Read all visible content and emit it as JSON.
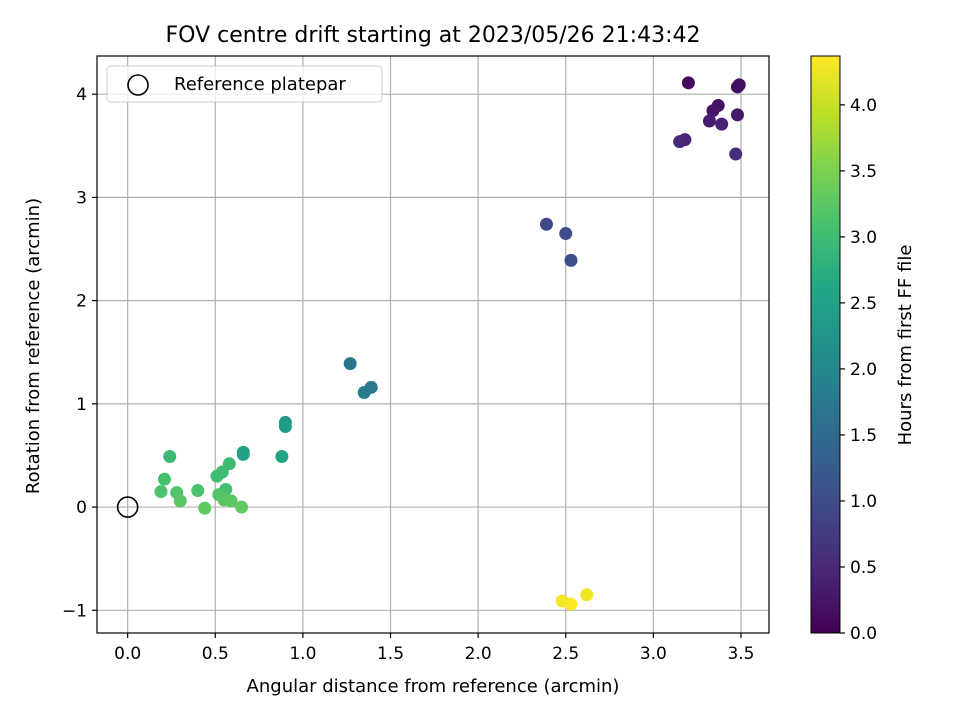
{
  "chart_data": {
    "type": "scatter",
    "title": "FOV centre drift starting at 2023/05/26 21:43:42",
    "xlabel": "Angular distance from reference (arcmin)",
    "ylabel": "Rotation from reference (arcmin)",
    "xlim": [
      -0.175,
      3.66
    ],
    "ylim": [
      -1.22,
      4.37
    ],
    "xticks": [
      0.0,
      0.5,
      1.0,
      1.5,
      2.0,
      2.5,
      3.0,
      3.5
    ],
    "yticks": [
      -1,
      0,
      1,
      2,
      3,
      4
    ],
    "xtick_labels": [
      "0.0",
      "0.5",
      "1.0",
      "1.5",
      "2.0",
      "2.5",
      "3.0",
      "3.5"
    ],
    "ytick_labels": [
      "−1",
      "0",
      "1",
      "2",
      "3",
      "4"
    ],
    "grid": true,
    "legend": {
      "location": "upper-left",
      "entries": [
        {
          "label": "Reference platepar",
          "marker": "hollow-circle"
        }
      ]
    },
    "reference_point": {
      "x": 0.0,
      "y": 0.0
    },
    "colorbar": {
      "label": "Hours from first FF file",
      "colormap": "viridis",
      "range": [
        0.0,
        4.37
      ],
      "ticks": [
        0.0,
        0.5,
        1.0,
        1.5,
        2.0,
        2.5,
        3.0,
        3.5,
        4.0
      ],
      "tick_labels": [
        "0.0",
        "0.5",
        "1.0",
        "1.5",
        "2.0",
        "2.5",
        "3.0",
        "3.5",
        "4.0"
      ]
    },
    "points": [
      {
        "x": 3.2,
        "y": 4.11,
        "c": 0.1
      },
      {
        "x": 3.49,
        "y": 4.09,
        "c": 0.12
      },
      {
        "x": 3.48,
        "y": 4.07,
        "c": 0.15
      },
      {
        "x": 3.37,
        "y": 3.89,
        "c": 0.2
      },
      {
        "x": 3.34,
        "y": 3.84,
        "c": 0.25
      },
      {
        "x": 3.48,
        "y": 3.8,
        "c": 0.3
      },
      {
        "x": 3.32,
        "y": 3.74,
        "c": 0.35
      },
      {
        "x": 3.39,
        "y": 3.71,
        "c": 0.4
      },
      {
        "x": 3.18,
        "y": 3.56,
        "c": 0.45
      },
      {
        "x": 3.15,
        "y": 3.54,
        "c": 0.5
      },
      {
        "x": 3.47,
        "y": 3.42,
        "c": 0.55
      },
      {
        "x": 2.39,
        "y": 2.74,
        "c": 0.95
      },
      {
        "x": 2.5,
        "y": 2.65,
        "c": 1.0
      },
      {
        "x": 2.53,
        "y": 2.39,
        "c": 1.05
      },
      {
        "x": 1.27,
        "y": 1.39,
        "c": 1.7
      },
      {
        "x": 1.39,
        "y": 1.16,
        "c": 1.75
      },
      {
        "x": 1.35,
        "y": 1.11,
        "c": 1.8
      },
      {
        "x": 0.9,
        "y": 0.82,
        "c": 2.35
      },
      {
        "x": 0.9,
        "y": 0.78,
        "c": 2.4
      },
      {
        "x": 0.66,
        "y": 0.53,
        "c": 2.45
      },
      {
        "x": 0.66,
        "y": 0.51,
        "c": 2.5
      },
      {
        "x": 0.88,
        "y": 0.49,
        "c": 2.55
      },
      {
        "x": 0.24,
        "y": 0.49,
        "c": 2.95
      },
      {
        "x": 0.58,
        "y": 0.42,
        "c": 2.97
      },
      {
        "x": 0.54,
        "y": 0.34,
        "c": 3.0
      },
      {
        "x": 0.51,
        "y": 0.3,
        "c": 3.02
      },
      {
        "x": 0.21,
        "y": 0.27,
        "c": 3.05
      },
      {
        "x": 0.56,
        "y": 0.17,
        "c": 3.07
      },
      {
        "x": 0.4,
        "y": 0.16,
        "c": 3.1
      },
      {
        "x": 0.19,
        "y": 0.15,
        "c": 3.12
      },
      {
        "x": 0.28,
        "y": 0.14,
        "c": 3.15
      },
      {
        "x": 0.52,
        "y": 0.12,
        "c": 3.17
      },
      {
        "x": 0.55,
        "y": 0.07,
        "c": 3.2
      },
      {
        "x": 0.3,
        "y": 0.06,
        "c": 3.22
      },
      {
        "x": 0.59,
        "y": 0.06,
        "c": 3.25
      },
      {
        "x": 0.44,
        "y": -0.01,
        "c": 3.27
      },
      {
        "x": 0.65,
        "y": 0.0,
        "c": 3.3
      },
      {
        "x": 2.62,
        "y": -0.85,
        "c": 4.3
      },
      {
        "x": 2.48,
        "y": -0.91,
        "c": 4.33
      },
      {
        "x": 2.53,
        "y": -0.94,
        "c": 4.36
      }
    ]
  }
}
